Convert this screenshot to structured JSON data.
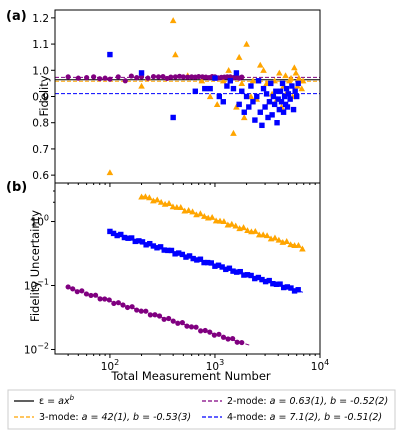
{
  "panels": {
    "a": "(a)",
    "b": "(b)"
  },
  "colors": {
    "3-mode": "#FFA500",
    "2-mode": "#800080",
    "4-mode": "#0000FF",
    "fit": "#000000"
  },
  "chart_data": [
    {
      "type": "scatter",
      "panel": "(a)",
      "xlabel": "",
      "ylabel": "Fidelity",
      "xscale": "log",
      "xlim": [
        30,
        10000
      ],
      "ylim": [
        0.57,
        1.23
      ],
      "yticks": [
        "0.6",
        "0.7",
        "0.8",
        "0.9",
        "1.0",
        "1.1",
        "1.2"
      ],
      "hlines": [
        {
          "series": "2-mode",
          "y": 0.973
        },
        {
          "series": "fit",
          "y": 0.964
        },
        {
          "series": "3-mode",
          "y": 0.958
        },
        {
          "series": "4-mode",
          "y": 0.911
        }
      ],
      "series": [
        {
          "name": "3-mode",
          "marker": "triangle",
          "x": [
            100,
            200,
            230,
            400,
            420,
            550,
            750,
            900,
            1050,
            1200,
            1350,
            1500,
            1600,
            1700,
            1800,
            1900,
            2000,
            2200,
            2300,
            2500,
            2700,
            2900,
            3100,
            3300,
            3500,
            3700,
            3900,
            4100,
            4300,
            4500,
            4700,
            4900,
            5100,
            5300,
            5500,
            5700,
            5900,
            6100,
            6300,
            6500,
            6700,
            6900
          ],
          "y": [
            0.61,
            0.94,
            0.97,
            1.19,
            1.06,
            0.98,
            0.96,
            0.9,
            0.87,
            0.96,
            1.0,
            0.76,
            0.86,
            1.05,
            0.95,
            0.82,
            1.1,
            0.9,
            0.96,
            0.89,
            1.02,
            1.0,
            0.95,
            0.88,
            0.91,
            0.96,
            0.89,
            0.99,
            0.86,
            0.94,
            0.98,
            0.92,
            0.96,
            0.97,
            0.9,
            1.01,
            0.99,
            0.94,
            0.97,
            0.96,
            0.93,
            0.96
          ]
        },
        {
          "name": "2-mode",
          "marker": "circle",
          "x": [
            40,
            50,
            60,
            70,
            80,
            90,
            100,
            120,
            140,
            160,
            180,
            200,
            230,
            260,
            290,
            320,
            350,
            380,
            420,
            460,
            500,
            550,
            600,
            650,
            700,
            760,
            820,
            880,
            940,
            1000,
            1070,
            1150,
            1230,
            1310,
            1400,
            1500,
            1600,
            1700,
            1800
          ],
          "y": [
            0.975,
            0.97,
            0.972,
            0.975,
            0.968,
            0.97,
            0.966,
            0.975,
            0.96,
            0.978,
            0.972,
            0.975,
            0.97,
            0.976,
            0.975,
            0.976,
            0.969,
            0.974,
            0.975,
            0.977,
            0.975,
            0.974,
            0.975,
            0.974,
            0.976,
            0.975,
            0.974,
            0.972,
            0.976,
            0.975,
            0.971,
            0.973,
            0.974,
            0.975,
            0.975,
            0.972,
            0.973,
            0.97,
            0.974
          ]
        },
        {
          "name": "4-mode",
          "marker": "square",
          "x": [
            100,
            200,
            400,
            650,
            800,
            900,
            1000,
            1100,
            1200,
            1300,
            1400,
            1500,
            1600,
            1700,
            1800,
            1900,
            2000,
            2100,
            2200,
            2300,
            2400,
            2500,
            2600,
            2700,
            2800,
            2900,
            3000,
            3100,
            3200,
            3300,
            3400,
            3500,
            3600,
            3700,
            3800,
            3900,
            4000,
            4100,
            4200,
            4300,
            4400,
            4500,
            4600,
            4700,
            4800,
            4900,
            5000,
            5200,
            5400,
            5600,
            5800,
            6000,
            6200
          ],
          "y": [
            1.06,
            0.99,
            0.82,
            0.92,
            0.93,
            0.93,
            0.97,
            0.9,
            0.88,
            0.94,
            0.96,
            0.93,
            0.99,
            0.87,
            0.92,
            0.84,
            0.9,
            0.86,
            0.94,
            0.88,
            0.81,
            0.9,
            0.96,
            0.84,
            0.79,
            0.93,
            0.86,
            0.91,
            0.82,
            0.88,
            0.95,
            0.83,
            0.9,
            0.87,
            0.92,
            0.8,
            0.89,
            0.85,
            0.92,
            0.88,
            0.95,
            0.84,
            0.9,
            0.87,
            0.93,
            0.86,
            0.91,
            0.89,
            0.94,
            0.85,
            0.92,
            0.9,
            0.95
          ]
        }
      ]
    },
    {
      "type": "scatter",
      "panel": "(b)",
      "xlabel": "Total Measurement Number",
      "ylabel": "Fidelity Uncertainty",
      "xscale": "log",
      "yscale": "log",
      "xlim": [
        30,
        10000
      ],
      "ylim": [
        0.0085,
        4
      ],
      "xticks": [
        {
          "v": 100,
          "t": "10",
          "e": "2"
        },
        {
          "v": 1000,
          "t": "10",
          "e": "3"
        },
        {
          "v": 10000,
          "t": "10",
          "e": "4"
        }
      ],
      "yticks": [
        {
          "v": 0.01,
          "t": "10",
          "e": "−2"
        },
        {
          "v": 0.1,
          "t": "10",
          "e": "−1"
        },
        {
          "v": 1,
          "t": "10",
          "e": "0"
        }
      ],
      "fits": [
        {
          "series": "3-mode",
          "a": 42,
          "b": -0.53,
          "xrange": [
            200,
            7000
          ]
        },
        {
          "series": "2-mode",
          "a": 0.63,
          "b": -0.52,
          "xrange": [
            40,
            2200
          ]
        },
        {
          "series": "4-mode",
          "a": 7.1,
          "b": -0.51,
          "xrange": [
            100,
            7000
          ]
        }
      ],
      "series": [
        {
          "name": "3-mode",
          "marker": "triangle",
          "a": 42,
          "b": -0.53,
          "xstart": 200,
          "xend": 6800,
          "n": 42
        },
        {
          "name": "2-mode",
          "marker": "circle",
          "a": 0.63,
          "b": -0.52,
          "xstart": 40,
          "xend": 1800,
          "n": 39
        },
        {
          "name": "4-mode",
          "marker": "square",
          "a": 7.1,
          "b": -0.51,
          "xstart": 100,
          "xend": 6200,
          "n": 53
        }
      ],
      "legend": {
        "placement": "below",
        "entries": [
          {
            "key": "fit",
            "style": "solid",
            "label": "ε = ax^b",
            "text_a": "ε = ",
            "text_b": "ax",
            "sup": "b"
          },
          {
            "key": "2-mode",
            "style": "dashed",
            "label": "2-mode: a = 0.63(1), b = -0.52(2)",
            "text_a": "2-mode: ",
            "text_b": "a = 0.63(1), b = -0.52(2)"
          },
          {
            "key": "3-mode",
            "style": "dashed",
            "label": "3-mode: a = 42(1), b = -0.53(3)",
            "text_a": "3-mode: ",
            "text_b": "a = 42(1), b = -0.53(3)"
          },
          {
            "key": "4-mode",
            "style": "dashed",
            "label": "4-mode: a = 7.1(2), b = -0.51(2)",
            "text_a": "4-mode: ",
            "text_b": "a = 7.1(2), b = -0.51(2)"
          }
        ]
      }
    }
  ]
}
